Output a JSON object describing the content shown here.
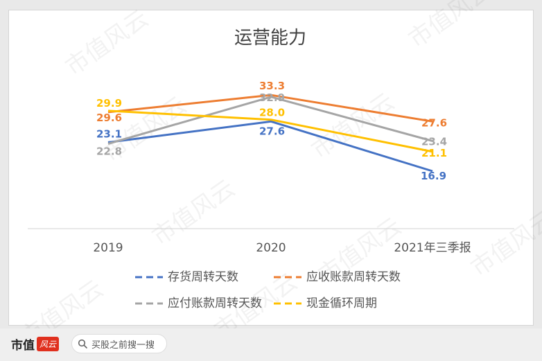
{
  "chart_data": {
    "type": "line",
    "title": "运营能力",
    "categories": [
      "2019",
      "2020",
      "2021年三季报"
    ],
    "series": [
      {
        "name": "存货周转天数",
        "color": "#4472c4",
        "values": [
          23.1,
          27.6,
          16.9
        ]
      },
      {
        "name": "应收账款周转天数",
        "color": "#ed7d31",
        "values": [
          29.6,
          33.3,
          27.6
        ]
      },
      {
        "name": "应付账款周转天数",
        "color": "#a5a5a5",
        "values": [
          22.8,
          32.9,
          23.4
        ]
      },
      {
        "name": "现金循环周期",
        "color": "#ffc000",
        "values": [
          29.9,
          28.0,
          21.1
        ]
      }
    ],
    "grid": false,
    "legend_position": "bottom",
    "data_labels": true
  },
  "watermark": "市值风云",
  "footer": {
    "brand": "市值",
    "brand_seal": "风云",
    "search_icon": "search-icon",
    "search_placeholder": "买股之前搜一搜"
  }
}
